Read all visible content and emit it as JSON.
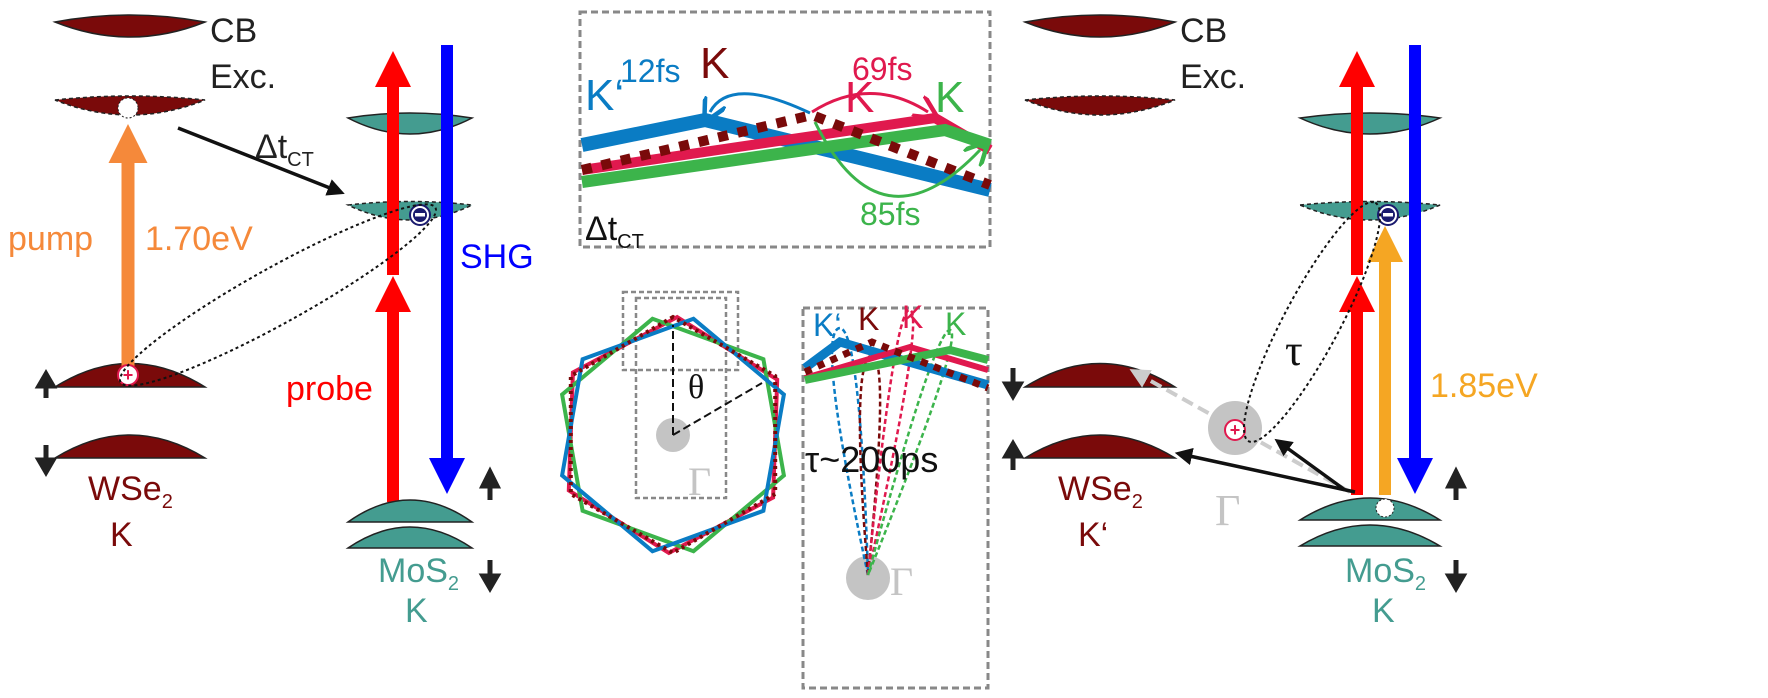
{
  "colors": {
    "wse2_band": "#7a0a0a",
    "mos2_band": "#449c90",
    "pump": "#f5893a",
    "probe": "#ff0000",
    "shg": "#0000ff",
    "pump2": "#f5a623",
    "k_prime": "#0a7cc4",
    "k_red": "#e0194e",
    "k_green": "#3cb44b",
    "gamma": "#bbbbbb"
  },
  "left": {
    "cb": "CB",
    "exc": "Exc.",
    "pump": "pump",
    "pump_energy": "1.70eV",
    "delta_t": "Δt",
    "delta_t_sub": "CT",
    "shg": "SHG",
    "probe": "probe",
    "wse2": "WSe",
    "wse2_sub": "2",
    "wse2_valley": "K",
    "mos2": "MoS",
    "mos2_sub": "2",
    "mos2_valley": "K"
  },
  "center_top": {
    "k_prime": "K‘",
    "t1": "12fs",
    "k_dark": "K",
    "t2": "69fs",
    "k_red": "K",
    "k_green": "K",
    "t3": "85fs",
    "delta_t": "Δt",
    "delta_t_sub": "CT"
  },
  "center_bottom": {
    "theta": "θ",
    "gamma": "Γ",
    "k_prime": "K‘",
    "k_dark": "K",
    "k_red": "K",
    "k_green": "K",
    "tau": "τ~200ps",
    "gamma2": "Γ"
  },
  "right": {
    "cb": "CB",
    "exc": "Exc.",
    "tau": "τ",
    "energy": "1.85eV",
    "gamma": "Γ",
    "wse2": "WSe",
    "wse2_sub": "2",
    "wse2_valley": "K‘",
    "mos2": "MoS",
    "mos2_sub": "2",
    "mos2_valley": "K"
  }
}
